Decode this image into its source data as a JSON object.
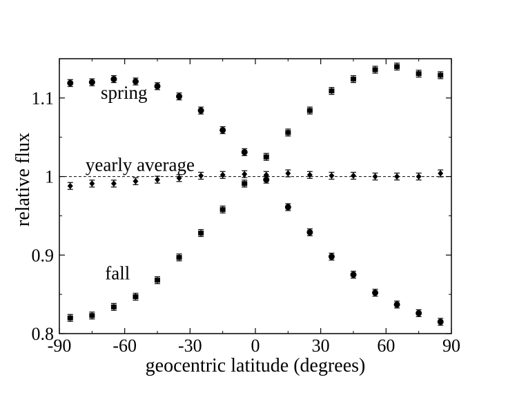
{
  "chart_data": {
    "type": "scatter",
    "xlabel": "geocentric latitude (degrees)",
    "ylabel": "relative flux",
    "xlim": [
      -90,
      90
    ],
    "ylim": [
      0.8,
      1.15
    ],
    "xticks": [
      -90,
      -60,
      -30,
      0,
      30,
      60,
      90
    ],
    "xtick_labels": [
      "-90",
      "-60",
      "-30",
      "0",
      "30",
      "60",
      "90"
    ],
    "yticks": [
      0.8,
      0.9,
      1.0,
      1.1
    ],
    "ytick_labels": [
      "0.8",
      "0.9",
      "1",
      "1.1"
    ],
    "reference_line": {
      "y": 1.0,
      "style": "dashed"
    },
    "grid": false,
    "x": [
      -85,
      -75,
      -65,
      -55,
      -45,
      -35,
      -25,
      -15,
      -5,
      5,
      15,
      25,
      35,
      45,
      55,
      65,
      75,
      85
    ],
    "series": [
      {
        "marker": "circle",
        "values": [
          1.119,
          1.12,
          1.124,
          1.121,
          1.115,
          1.102,
          1.084,
          1.059,
          1.031,
          0.996,
          0.961,
          0.929,
          0.898,
          0.875,
          0.852,
          0.837,
          0.826,
          0.815
        ]
      },
      {
        "marker": "diamond",
        "values": [
          0.988,
          0.991,
          0.991,
          0.994,
          0.996,
          0.998,
          1.001,
          1.002,
          1.003,
          1.002,
          1.004,
          1.002,
          1.001,
          1.001,
          1.0,
          1.0,
          1.0,
          1.004
        ]
      },
      {
        "marker": "square",
        "values": [
          0.82,
          0.823,
          0.834,
          0.847,
          0.868,
          0.897,
          0.928,
          0.958,
          0.991,
          1.025,
          1.056,
          1.084,
          1.109,
          1.124,
          1.136,
          1.14,
          1.131,
          1.129
        ]
      }
    ],
    "annotations": [
      {
        "text": "spring",
        "x": -71,
        "y": 1.099
      },
      {
        "text": "yearly average",
        "x": -78,
        "y": 1.007
      },
      {
        "text": "fall",
        "x": -69,
        "y": 0.869
      }
    ]
  }
}
